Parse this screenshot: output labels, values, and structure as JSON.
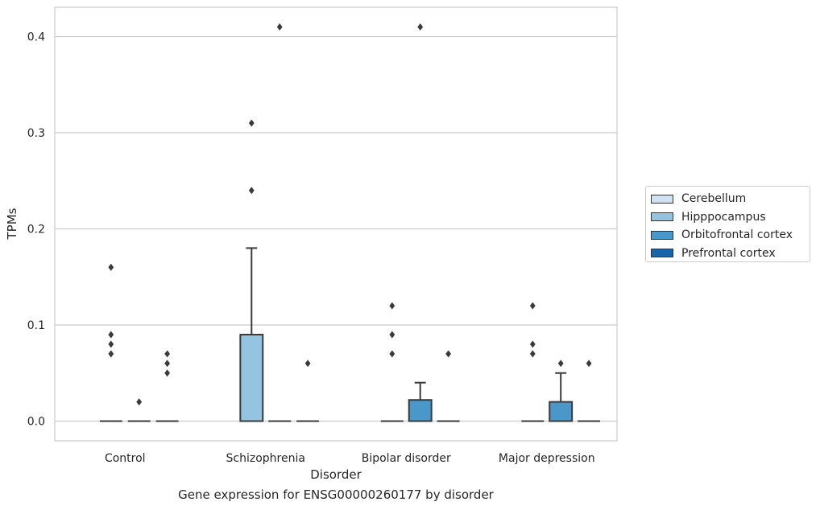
{
  "chart_data": {
    "type": "box",
    "xlabel": "Disorder",
    "ylabel": "TPMs",
    "caption": "Gene expression for ENSG00000260177 by disorder",
    "ylim": [
      -0.02,
      0.43
    ],
    "yticks": [
      0.0,
      0.1,
      0.2,
      0.3,
      0.4
    ],
    "ytick_labels": [
      "0.0",
      "0.1",
      "0.2",
      "0.3",
      "0.4"
    ],
    "grid": "horizontal",
    "legend_position": "right",
    "categories": [
      "Control",
      "Schizophrenia",
      "Bipolar disorder",
      "Major depression"
    ],
    "series": [
      {
        "name": "Cerebellum",
        "color": "#d0e1f2"
      },
      {
        "name": "Hipppocampus",
        "color": "#94c4df"
      },
      {
        "name": "Orbitofrontal cortex",
        "color": "#4a98c9"
      },
      {
        "name": "Prefrontal cortex",
        "color": "#1764ab"
      }
    ],
    "boxes": [
      {
        "category": "Control",
        "series": "Hipppocampus",
        "q1": 0.0,
        "median": 0.0,
        "q3": 0.0,
        "whisker_low": 0.0,
        "whisker_high": 0.0,
        "outliers": [
          0.16,
          0.09,
          0.08,
          0.07
        ]
      },
      {
        "category": "Control",
        "series": "Orbitofrontal cortex",
        "q1": 0.0,
        "median": 0.0,
        "q3": 0.0,
        "whisker_low": 0.0,
        "whisker_high": 0.0,
        "outliers": [
          0.02
        ]
      },
      {
        "category": "Control",
        "series": "Prefrontal cortex",
        "q1": 0.0,
        "median": 0.0,
        "q3": 0.0,
        "whisker_low": 0.0,
        "whisker_high": 0.0,
        "outliers": [
          0.07,
          0.06,
          0.05
        ]
      },
      {
        "category": "Schizophrenia",
        "series": "Hipppocampus",
        "q1": 0.0,
        "median": 0.0,
        "q3": 0.09,
        "whisker_low": 0.0,
        "whisker_high": 0.18,
        "outliers": [
          0.31,
          0.24
        ]
      },
      {
        "category": "Schizophrenia",
        "series": "Orbitofrontal cortex",
        "q1": 0.0,
        "median": 0.0,
        "q3": 0.0,
        "whisker_low": 0.0,
        "whisker_high": 0.0,
        "outliers": [
          0.41
        ]
      },
      {
        "category": "Schizophrenia",
        "series": "Prefrontal cortex",
        "q1": 0.0,
        "median": 0.0,
        "q3": 0.0,
        "whisker_low": 0.0,
        "whisker_high": 0.0,
        "outliers": [
          0.06
        ]
      },
      {
        "category": "Bipolar disorder",
        "series": "Hipppocampus",
        "q1": 0.0,
        "median": 0.0,
        "q3": 0.0,
        "whisker_low": 0.0,
        "whisker_high": 0.0,
        "outliers": [
          0.07,
          0.09,
          0.12
        ]
      },
      {
        "category": "Bipolar disorder",
        "series": "Orbitofrontal cortex",
        "q1": 0.0,
        "median": 0.0,
        "q3": 0.022,
        "whisker_low": 0.0,
        "whisker_high": 0.04,
        "outliers": [
          0.41
        ]
      },
      {
        "category": "Bipolar disorder",
        "series": "Prefrontal cortex",
        "q1": 0.0,
        "median": 0.0,
        "q3": 0.0,
        "whisker_low": 0.0,
        "whisker_high": 0.0,
        "outliers": [
          0.07
        ]
      },
      {
        "category": "Major depression",
        "series": "Hipppocampus",
        "q1": 0.0,
        "median": 0.0,
        "q3": 0.0,
        "whisker_low": 0.0,
        "whisker_high": 0.0,
        "outliers": [
          0.07,
          0.08,
          0.12
        ]
      },
      {
        "category": "Major depression",
        "series": "Orbitofrontal cortex",
        "q1": 0.0,
        "median": 0.0,
        "q3": 0.02,
        "whisker_low": 0.0,
        "whisker_high": 0.05,
        "outliers": [
          0.06
        ]
      },
      {
        "category": "Major depression",
        "series": "Prefrontal cortex",
        "q1": 0.0,
        "median": 0.0,
        "q3": 0.0,
        "whisker_low": 0.0,
        "whisker_high": 0.0,
        "outliers": [
          0.06
        ]
      }
    ]
  }
}
